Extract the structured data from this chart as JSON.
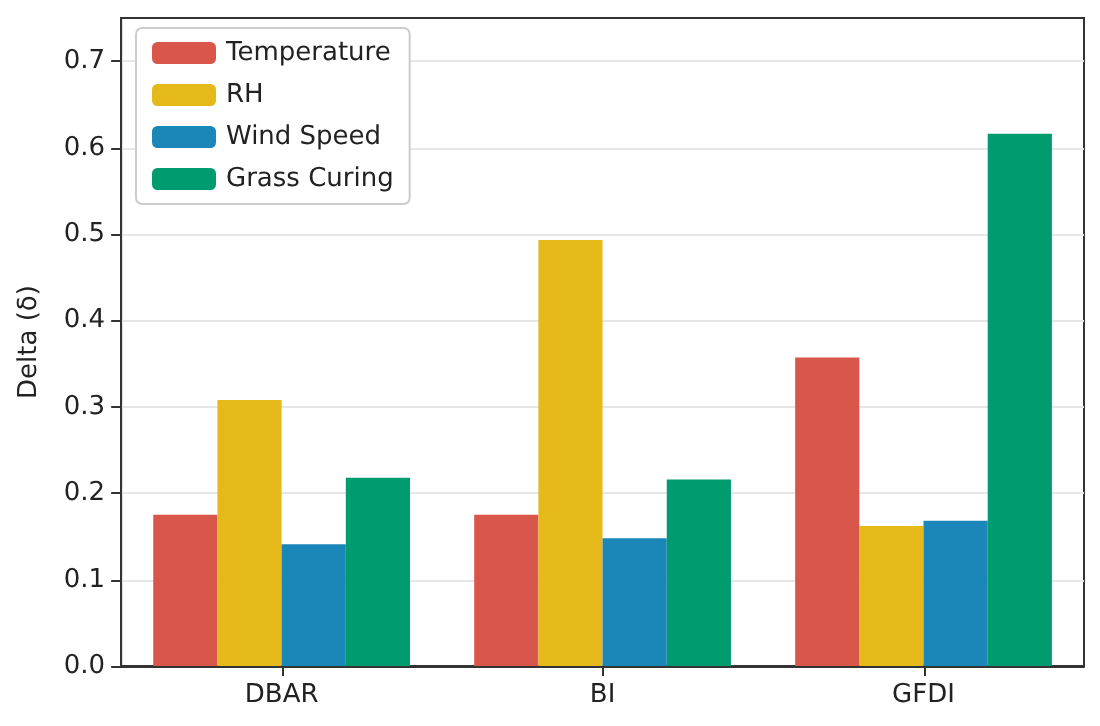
{
  "chart_data": {
    "type": "bar",
    "ylabel": "Delta (δ)",
    "categories": [
      "DBAR",
      "BI",
      "GFDI"
    ],
    "series": [
      {
        "name": "Temperature",
        "color": "#d9564b",
        "values": [
          0.175,
          0.175,
          0.357
        ]
      },
      {
        "name": "RH",
        "color": "#e6b91a",
        "values": [
          0.308,
          0.493,
          0.162
        ]
      },
      {
        "name": "Wind Speed",
        "color": "#1b86b8",
        "values": [
          0.141,
          0.148,
          0.168
        ]
      },
      {
        "name": "Grass Curing",
        "color": "#009b6e",
        "values": [
          0.218,
          0.216,
          0.616
        ]
      }
    ],
    "ylim": [
      0,
      0.75
    ],
    "yticks": [
      {
        "value": 0,
        "label": "0.0"
      },
      0.1,
      0.2,
      0.3,
      0.4,
      0.5,
      0.6,
      0.7
    ],
    "grid": "y",
    "legend": "top left"
  }
}
